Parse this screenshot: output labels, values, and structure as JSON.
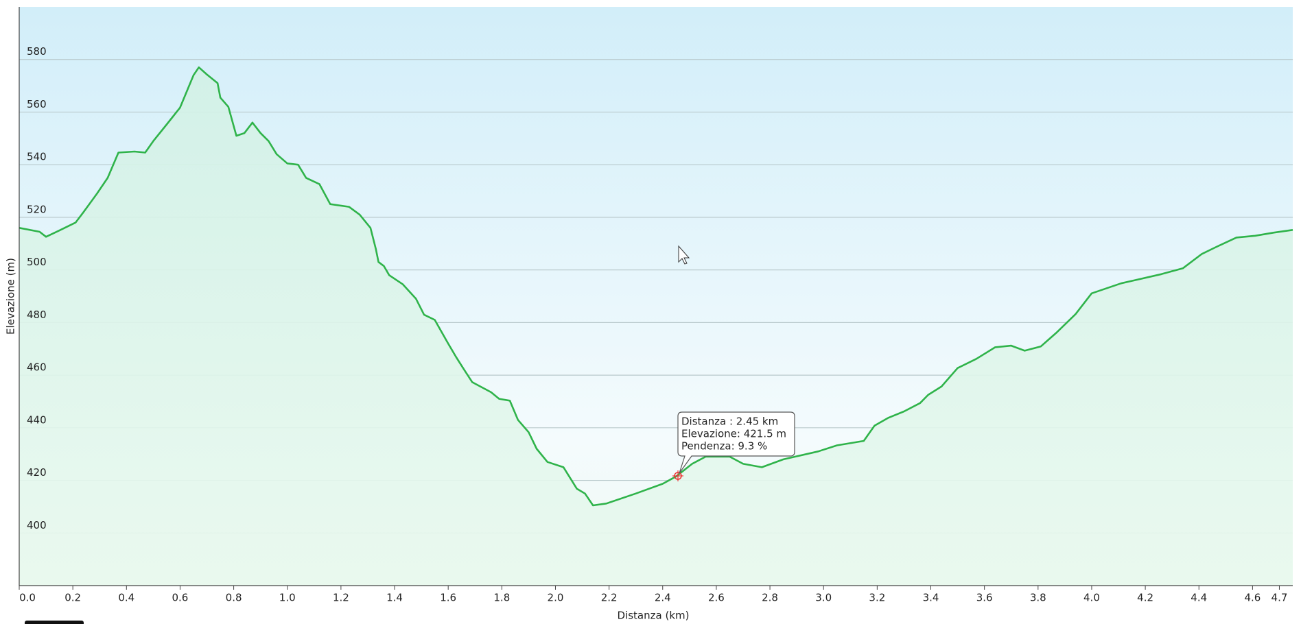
{
  "chart_data": {
    "type": "area",
    "xlabel": "Distanza  (km)",
    "ylabel": "Elevazione (m)",
    "xlim": [
      0,
      4.75
    ],
    "ylim": [
      380,
      600
    ],
    "xticks": [
      {
        "value": 0,
        "label": "0.0"
      },
      0.2,
      0.4,
      0.6,
      0.8,
      {
        "value": 1,
        "label": "1.0"
      },
      1.2,
      1.4,
      1.6,
      1.8,
      {
        "value": 2,
        "label": "2.0"
      },
      2.2,
      2.4,
      2.6,
      2.8,
      {
        "value": 3,
        "label": "3.0"
      },
      3.2,
      3.4,
      3.6,
      3.8,
      {
        "value": 4,
        "label": "4.0"
      },
      4.2,
      4.4,
      4.6,
      4.7
    ],
    "yticks": [
      400,
      420,
      440,
      460,
      480,
      500,
      520,
      540,
      560,
      580
    ],
    "grid": true,
    "x": [
      0,
      0.076,
      0.1,
      0.15,
      0.21,
      0.24,
      0.29,
      0.33,
      0.37,
      0.43,
      0.47,
      0.5,
      0.55,
      0.6,
      0.65,
      0.67,
      0.7,
      0.74,
      0.75,
      0.78,
      0.81,
      0.84,
      0.87,
      0.9,
      0.93,
      0.96,
      1.0,
      1.04,
      1.07,
      1.12,
      1.16,
      1.23,
      1.27,
      1.31,
      1.33,
      1.34,
      1.36,
      1.38,
      1.43,
      1.48,
      1.51,
      1.55,
      1.6,
      1.63,
      1.66,
      1.69,
      1.76,
      1.79,
      1.83,
      1.86,
      1.9,
      1.93,
      1.97,
      2.03,
      2.08,
      2.11,
      2.14,
      2.19,
      2.3,
      2.4,
      2.45,
      2.51,
      2.56,
      2.65,
      2.7,
      2.77,
      2.85,
      2.98,
      3.05,
      3.15,
      3.19,
      3.24,
      3.3,
      3.36,
      3.39,
      3.44,
      3.5,
      3.57,
      3.64,
      3.7,
      3.75,
      3.81,
      3.87,
      3.94,
      4.0,
      4.11,
      4.26,
      4.34,
      4.41,
      4.46,
      4.54,
      4.61,
      4.68,
      4.75
    ],
    "series": [
      {
        "name": "Elevazione",
        "color": "#2fb34a",
        "values": [
          516,
          514.5,
          512.6,
          515,
          518,
          522,
          529,
          535,
          544.6,
          545,
          544.6,
          549,
          555.3,
          561.7,
          574,
          577,
          574.3,
          571,
          565.5,
          562,
          551,
          552,
          556,
          552,
          549,
          544,
          540.5,
          540,
          535,
          532.6,
          525,
          524,
          521,
          516,
          508,
          503,
          501.5,
          498,
          494.6,
          489,
          483,
          481,
          472,
          466.8,
          462,
          457.3,
          453.5,
          451,
          450.3,
          443,
          438.3,
          432,
          427,
          425,
          416.8,
          415,
          410.5,
          411.2,
          415,
          418.7,
          421.5,
          426.3,
          429,
          429,
          426.3,
          425,
          428,
          431,
          433.3,
          435,
          440.8,
          443.7,
          446.2,
          449.4,
          452.5,
          455.7,
          462.7,
          466.2,
          470.6,
          471.2,
          469.3,
          470.9,
          476.3,
          483.2,
          491.1,
          494.9,
          498.4,
          500.6,
          506,
          508.5,
          512.3,
          513,
          514.2,
          515.2
        ]
      }
    ],
    "tooltip": [
      "Distanza : 2.45 km",
      "Elevazione: 421.5 m",
      "Pendenza: 9.3 %"
    ]
  }
}
